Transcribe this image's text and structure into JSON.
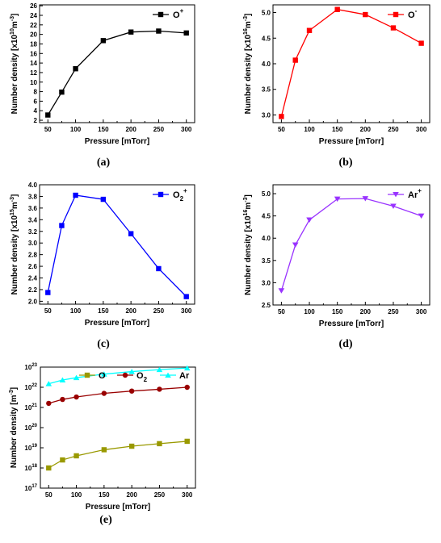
{
  "chart_data": [
    {
      "type": "line",
      "panel_label": "(a)",
      "xlabel": "Pressure [mTorr]",
      "ylabel": "Number density [x10",
      "ylabel_exp": "10",
      "ylabel_unit": "m",
      "ylabel_unit_exp": "-3",
      "ylabel_close": "]",
      "x": [
        50,
        75,
        100,
        150,
        200,
        250,
        300
      ],
      "xticks": [
        50,
        100,
        150,
        200,
        250,
        300
      ],
      "xlim": [
        35,
        315
      ],
      "ylim": [
        1.5,
        26.2
      ],
      "yticks": [
        2,
        4,
        6,
        8,
        10,
        12,
        14,
        16,
        18,
        20,
        22,
        24,
        26
      ],
      "yscale": "linear",
      "legend_position": "top-right",
      "series": [
        {
          "name": "O",
          "name_sup": "+",
          "name_sub": "",
          "color": "#000000",
          "marker": "square",
          "values": [
            3.1,
            7.9,
            12.8,
            18.7,
            20.5,
            20.7,
            20.3
          ]
        }
      ]
    },
    {
      "type": "line",
      "panel_label": "(b)",
      "xlabel": "Pressure [mTorr]",
      "ylabel": "Number density [x10",
      "ylabel_exp": "16",
      "ylabel_unit": "m",
      "ylabel_unit_exp": "-3",
      "ylabel_close": "]",
      "x": [
        50,
        75,
        100,
        150,
        200,
        250,
        300
      ],
      "xticks": [
        50,
        100,
        150,
        200,
        250,
        300
      ],
      "xlim": [
        35,
        315
      ],
      "ylim": [
        2.85,
        5.15
      ],
      "yticks": [
        3.0,
        3.5,
        4.0,
        4.5,
        5.0
      ],
      "ytick_decimals": 1,
      "yscale": "linear",
      "legend_position": "top-right",
      "series": [
        {
          "name": "O",
          "name_sup": "-",
          "name_sub": "",
          "color": "#ff0000",
          "marker": "square",
          "values": [
            2.97,
            4.07,
            4.65,
            5.06,
            4.96,
            4.7,
            4.4
          ]
        }
      ]
    },
    {
      "type": "line",
      "panel_label": "(c)",
      "xlabel": "Pressure [mTorr]",
      "ylabel": "Number density [x10",
      "ylabel_exp": "15",
      "ylabel_unit": "m",
      "ylabel_unit_exp": "-3",
      "ylabel_close": "]",
      "x": [
        50,
        75,
        100,
        150,
        200,
        250,
        300
      ],
      "xticks": [
        50,
        100,
        150,
        200,
        250,
        300
      ],
      "xlim": [
        35,
        315
      ],
      "ylim": [
        1.95,
        4.0
      ],
      "yticks": [
        2.0,
        2.2,
        2.4,
        2.6,
        2.8,
        3.0,
        3.2,
        3.4,
        3.6,
        3.8,
        4.0
      ],
      "ytick_decimals": 1,
      "yscale": "linear",
      "legend_position": "top-right",
      "series": [
        {
          "name": "O",
          "name_sup": "+",
          "name_sub": "2",
          "color": "#0000ff",
          "marker": "square",
          "values": [
            2.15,
            3.3,
            3.82,
            3.75,
            3.16,
            2.56,
            2.08
          ]
        }
      ]
    },
    {
      "type": "line",
      "panel_label": "(d)",
      "xlabel": "Pressure [mTorr]",
      "ylabel": "Number density [x10",
      "ylabel_exp": "16",
      "ylabel_unit": "m",
      "ylabel_unit_exp": "-3",
      "ylabel_close": "]",
      "x": [
        50,
        75,
        100,
        150,
        200,
        250,
        300
      ],
      "xticks": [
        50,
        100,
        150,
        200,
        250,
        300
      ],
      "xlim": [
        35,
        315
      ],
      "ylim": [
        2.5,
        5.2
      ],
      "yticks": [
        2.5,
        3.0,
        3.5,
        4.0,
        4.5,
        5.0
      ],
      "ytick_decimals": 1,
      "yscale": "linear",
      "legend_position": "top-right",
      "series": [
        {
          "name": "Ar",
          "name_sup": "+",
          "name_sub": "",
          "color": "#9933ff",
          "marker": "triangle-down",
          "values": [
            2.82,
            3.85,
            4.41,
            4.88,
            4.89,
            4.72,
            4.5
          ]
        }
      ]
    },
    {
      "type": "line",
      "panel_label": "(e)",
      "xlabel": "Pressure [mTorr]",
      "ylabel": "Number density [m",
      "ylabel_unit_exp": "-3",
      "ylabel_close": "]",
      "x": [
        50,
        75,
        100,
        150,
        200,
        250,
        300
      ],
      "xticks": [
        50,
        100,
        150,
        200,
        250,
        300
      ],
      "xlim": [
        35,
        315
      ],
      "ylim_exp": [
        17,
        23
      ],
      "yticks_exp": [
        17,
        18,
        19,
        20,
        21,
        22,
        23
      ],
      "ytick_base": "10",
      "yscale": "log",
      "legend_position": "top",
      "series": [
        {
          "name": "O",
          "name_sup": "",
          "name_sub": "",
          "color": "#999900",
          "marker": "square",
          "values": [
            1e+18,
            2.5e+18,
            4e+18,
            8e+18,
            1.2e+19,
            1.6e+19,
            2.1e+19
          ]
        },
        {
          "name": "O",
          "name_sup": "",
          "name_sub": "2",
          "color": "#990000",
          "marker": "circle",
          "values": [
            1.6e+21,
            2.5e+21,
            3.3e+21,
            5e+21,
            6.5e+21,
            8e+21,
            1e+22
          ]
        },
        {
          "name": "Ar",
          "name_sup": "",
          "name_sub": "",
          "color": "#00ffff",
          "marker": "triangle-up",
          "values": [
            1.5e+22,
            2.3e+22,
            3e+22,
            4.5e+22,
            6e+22,
            7.5e+22,
            9e+22
          ]
        }
      ]
    }
  ]
}
